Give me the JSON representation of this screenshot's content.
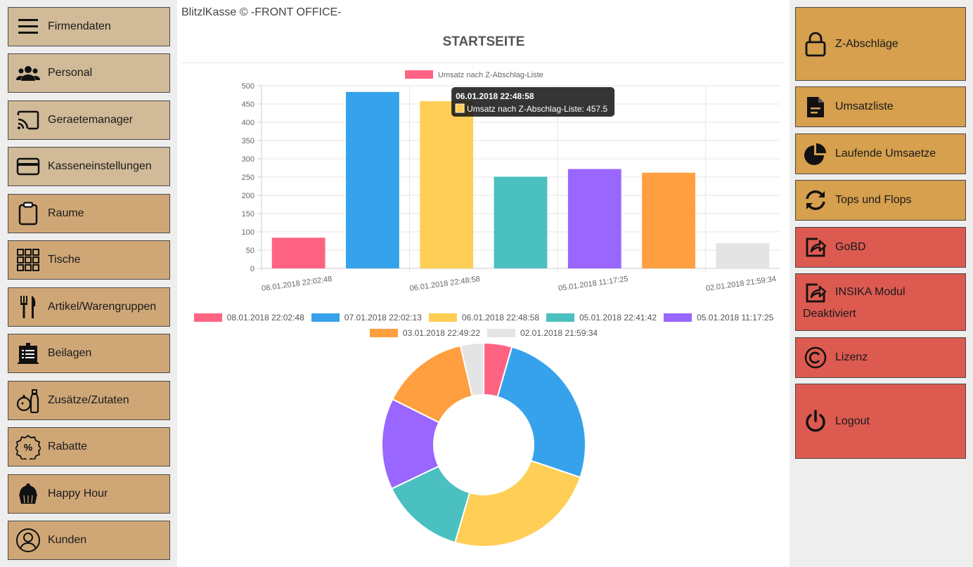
{
  "app_title": "BlitzlKasse © -FRONT OFFICE-",
  "page_title": "STARTSEITE",
  "colors": {
    "left_top_button": "#d1ba98",
    "left_button": "#cfa777",
    "right_orange": "#d6a04e",
    "right_red": "#dc5a50",
    "panel_bg": "#eeeeee"
  },
  "left_menu": [
    {
      "label": "Firmendaten",
      "icon": "menu-icon"
    },
    {
      "label": "Personal",
      "icon": "people-icon"
    },
    {
      "label": "Geraetemanager",
      "icon": "cast-icon"
    },
    {
      "label": "Kasseneinstellungen",
      "icon": "credit-card-icon"
    },
    {
      "label": "Raume",
      "icon": "clipboard-icon"
    },
    {
      "label": "Tische",
      "icon": "grid-icon"
    },
    {
      "label": "Artikel/Warengruppen",
      "icon": "cutlery-icon"
    },
    {
      "label": "Beilagen",
      "icon": "menu-board-icon"
    },
    {
      "label": "Zusätze/Zutaten",
      "icon": "ingredients-icon"
    },
    {
      "label": "Rabatte",
      "icon": "percent-badge-icon"
    },
    {
      "label": "Happy Hour",
      "icon": "cupcake-icon"
    },
    {
      "label": "Kunden",
      "icon": "user-icon"
    }
  ],
  "right_menu": [
    {
      "label": "Z-Abschläge",
      "icon": "lock-icon"
    },
    {
      "label": "Umsatzliste",
      "icon": "document-icon"
    },
    {
      "label": "Laufende Umsaetze",
      "icon": "pie-chart-icon"
    },
    {
      "label": "Tops und Flops",
      "icon": "refresh-icon"
    },
    {
      "label": "GoBD",
      "icon": "share-icon"
    },
    {
      "label": "INSIKA Modul",
      "sublabel": "Deaktiviert",
      "icon": "share-icon"
    },
    {
      "label": "Lizenz",
      "icon": "copyright-icon"
    },
    {
      "label": "Logout",
      "icon": "power-icon"
    }
  ],
  "chart_data": [
    {
      "type": "bar",
      "series_name": "Umsatz nach Z-Abschlag-Liste",
      "categories": [
        "08.01.2018 22:02:48",
        "07.01.2018 22:02:13",
        "06.01.2018 22:48:58",
        "05.01.2018 22:41:42",
        "05.01.2018 11:17:25",
        "03.01.2018 22:49:22",
        "02.01.2018 21:59:34"
      ],
      "values": [
        84,
        483,
        457.5,
        251,
        272,
        262,
        69
      ],
      "colors": [
        "#ff6384",
        "#36a2eb",
        "#ffce56",
        "#4bc0c0",
        "#9966ff",
        "#ff9f40",
        "#e4e4e4"
      ],
      "ylim": [
        0,
        500
      ],
      "yticks": [
        "0",
        "50",
        "100",
        "150",
        "200",
        "250",
        "300",
        "350",
        "400",
        "450",
        "500"
      ],
      "shown_xtick_labels": [
        "08.01.2018 22:02:48",
        "06.01.2018 22:48:58",
        "05.01.2018 11:17:25",
        "02.01.2018 21:59:34"
      ],
      "grid": true,
      "legend_position": "top",
      "tooltip": {
        "title": "06.01.2018 22:48:58",
        "text": "Umsatz nach Z-Abschlag-Liste: 457.5"
      }
    },
    {
      "type": "pie",
      "labels": [
        "08.01.2018 22:02:48",
        "07.01.2018 22:02:13",
        "06.01.2018 22:48:58",
        "05.01.2018 22:41:42",
        "05.01.2018 11:17:25",
        "03.01.2018 22:49:22",
        "02.01.2018 21:59:34"
      ],
      "values": [
        84,
        483,
        457.5,
        251,
        272,
        262,
        69
      ],
      "colors": [
        "#ff6384",
        "#36a2eb",
        "#ffce56",
        "#4bc0c0",
        "#9966ff",
        "#ff9f40",
        "#e4e4e4"
      ],
      "donut": true,
      "legend_position": "top"
    }
  ]
}
